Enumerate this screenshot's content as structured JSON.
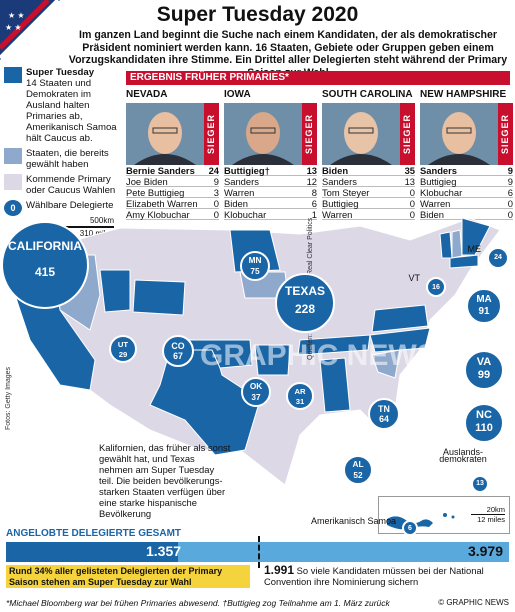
{
  "header": {
    "title": "Super Tuesday 2020",
    "subtitle": "Im ganzen Land beginnt die Suche nach einem Kandidaten, der als demokratischer Präsident nominiert werden kann. 16 Staaten, Gebiete oder Gruppen geben einem Vorzugskandidaten ihre Stimme. Ein Drittel aller Delegierten steht während der Primary Saison zur Wahl"
  },
  "colors": {
    "super_tuesday": "#1a65a6",
    "voted": "#8fa9cc",
    "upcoming": "#dcd8e6",
    "red": "#c8102e",
    "bar_blue": "#5aa9dd",
    "bar_dark": "#1a65a6",
    "highlight": "#f4d33c"
  },
  "legend": {
    "super_tuesday_title": "Super Tuesday",
    "super_tuesday_text": "14 Staaten und Demokraten im Ausland halten Primaries ab, Amerikanisch Samoa hält Caucus ab.",
    "voted": "Staaten, die bereits gewählt haben",
    "upcoming": "Kommende Primary oder Caucus Wahlen",
    "delegates_symbol": "0",
    "delegates": "Wählbare Delegierte",
    "scale_km": "500km",
    "scale_mi": "310 miles"
  },
  "results": {
    "bar_label": "ERGEBNIS FRÜHER PRIMARIES*",
    "winner_label": "SIEGER",
    "states": [
      {
        "name": "NEVADA",
        "candidates": [
          {
            "n": "Bernie Sanders",
            "v": "24"
          },
          {
            "n": "Joe Biden",
            "v": "9"
          },
          {
            "n": "Pete Buttigieg",
            "v": "3"
          },
          {
            "n": "Elizabeth Warren",
            "v": "0"
          },
          {
            "n": "Amy Klobuchar",
            "v": "0"
          }
        ]
      },
      {
        "name": "IOWA",
        "candidates": [
          {
            "n": "Buttigieg†",
            "v": "13"
          },
          {
            "n": "Sanders",
            "v": "12"
          },
          {
            "n": "Warren",
            "v": "8"
          },
          {
            "n": "Biden",
            "v": "6"
          },
          {
            "n": "Klobuchar",
            "v": "1"
          }
        ]
      },
      {
        "name": "SOUTH CAROLINA",
        "candidates": [
          {
            "n": "Biden",
            "v": "35"
          },
          {
            "n": "Sanders",
            "v": "13"
          },
          {
            "n": "Tom Steyer",
            "v": "0"
          },
          {
            "n": "Buttigieg",
            "v": "0"
          },
          {
            "n": "Warren",
            "v": "0"
          }
        ]
      },
      {
        "name": "NEW HAMPSHIRE",
        "candidates": [
          {
            "n": "Sanders",
            "v": "9"
          },
          {
            "n": "Buttigieg",
            "v": "9"
          },
          {
            "n": "Klobuchar",
            "v": "6"
          },
          {
            "n": "Warren",
            "v": "0"
          },
          {
            "n": "Biden",
            "v": "0"
          }
        ]
      }
    ]
  },
  "chart_data": {
    "type": "bar",
    "title": "ANGELOBTE DELEGIERTE GESAMT",
    "categories": [
      "Super Tuesday",
      "Gesamt"
    ],
    "values": [
      1357,
      3979
    ],
    "labels": [
      "1.357",
      "3.979"
    ],
    "threshold": {
      "value": 1991,
      "label": "1.991",
      "text": "So viele Kandidaten müssen bei der National Convention ihre Nominierung sichern"
    },
    "note": "Rund 34% aller gelisteten Delegierten der Primary Saison stehen am Super Tuesday zur Wahl",
    "delegates": [
      {
        "state": "CALIFORNIA",
        "v": 415
      },
      {
        "state": "TEXAS",
        "v": 228
      },
      {
        "state": "NC",
        "v": 110
      },
      {
        "state": "VA",
        "v": 99
      },
      {
        "state": "MA",
        "v": 91
      },
      {
        "state": "MN",
        "v": 75
      },
      {
        "state": "CO",
        "v": 67
      },
      {
        "state": "TN",
        "v": 64
      },
      {
        "state": "AL",
        "v": 52
      },
      {
        "state": "OK",
        "v": 37
      },
      {
        "state": "AR",
        "v": 31
      },
      {
        "state": "UT",
        "v": 29
      },
      {
        "state": "ME",
        "v": 24
      },
      {
        "state": "VT",
        "v": 16
      },
      {
        "state": "Auslands-demokraten",
        "v": 13
      },
      {
        "state": "Amerikanisch Samoa",
        "v": 6
      }
    ]
  },
  "map_text": {
    "california_note": "Kalifornien, das früher als sonst gewählt hat, und Texas nehmen am Super Tuesday teil. Die beiden bevölkerungs-starken Staaten verfügen über eine starke hispanische Bevölkerung",
    "source": "Quellen: Democratic Party, Real Clear Politics",
    "photos": "Fotos: Getty Images",
    "samoa_scale_km": "20km",
    "samoa_scale_mi": "12 miles",
    "watermark": "GRAPHIC NEWS"
  },
  "footer": {
    "note": "*Michael Bloomberg war bei frühen Primaries abwesend. †Buttigieg zog Teilnahme am 1. März zurück",
    "copyright": "© GRAPHIC NEWS"
  }
}
